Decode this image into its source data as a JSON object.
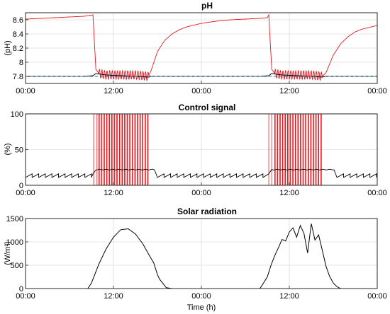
{
  "colors": {
    "red": "#e8151b",
    "black": "#000000",
    "blue": "#1f6fb5",
    "grid": "#dcdcdc",
    "axis": "#262626"
  },
  "chart_data": [
    {
      "type": "line",
      "title": "pH",
      "xlabel": "",
      "ylabel": "(pH)",
      "x_unit": "hours",
      "xlim": [
        0,
        48
      ],
      "ylim": [
        7.7,
        8.7
      ],
      "xticks": [
        0,
        12,
        24,
        36,
        48
      ],
      "xticklabels": [
        "00:00",
        "12:00",
        "00:00",
        "12:00",
        "00:00"
      ],
      "yticks": [
        7.8,
        8.0,
        8.2,
        8.4,
        8.6
      ],
      "yticklabels": [
        "7.8",
        "8",
        "8.2",
        "8.4",
        "8.6"
      ],
      "grid": true,
      "series": [
        {
          "color": "red",
          "style": "solid",
          "x": [
            0,
            2,
            4,
            6,
            8,
            9.2,
            9.6,
            10,
            11,
            13,
            15,
            16.8,
            17.2,
            18,
            19,
            20,
            21,
            22,
            24,
            26,
            28,
            30,
            32,
            33,
            33.2,
            33.6,
            34,
            35,
            37,
            39,
            40.5,
            41,
            42,
            43,
            44,
            45,
            46,
            48
          ],
          "y": [
            8.61,
            8.62,
            8.63,
            8.64,
            8.65,
            8.67,
            7.9,
            7.84,
            7.82,
            7.82,
            7.82,
            7.8,
            7.9,
            8.15,
            8.31,
            8.4,
            8.46,
            8.5,
            8.55,
            8.58,
            8.6,
            8.61,
            8.62,
            8.63,
            8.67,
            7.9,
            7.84,
            7.82,
            7.82,
            7.82,
            7.8,
            7.85,
            8.1,
            8.26,
            8.36,
            8.43,
            8.47,
            8.52
          ],
          "oscillation": {
            "ranges": [
              [
                10,
                16.8
              ],
              [
                34,
                40.5
              ]
            ],
            "period_h": 0.35,
            "amplitude": 0.06
          }
        },
        {
          "color": "black",
          "style": "solid",
          "x": [
            0,
            4,
            8,
            9.2,
            9.6,
            11,
            13,
            15,
            16.8,
            17.2,
            20,
            24,
            28,
            32,
            33.2,
            33.6,
            35,
            37,
            39,
            40.5,
            41,
            44,
            48
          ],
          "y": [
            7.8,
            7.8,
            7.8,
            7.81,
            7.84,
            7.82,
            7.81,
            7.8,
            7.79,
            7.8,
            7.8,
            7.8,
            7.8,
            7.8,
            7.81,
            7.84,
            7.82,
            7.81,
            7.8,
            7.79,
            7.8,
            7.8,
            7.8
          ]
        },
        {
          "color": "blue",
          "style": "dashed",
          "x": [
            0,
            48
          ],
          "y": [
            7.8,
            7.8
          ]
        }
      ]
    },
    {
      "type": "line",
      "title": "Control signal",
      "xlabel": "",
      "ylabel": "(%)",
      "x_unit": "hours",
      "xlim": [
        0,
        48
      ],
      "ylim": [
        0,
        100
      ],
      "xticks": [
        0,
        12,
        24,
        36,
        48
      ],
      "xticklabels": [
        "00:00",
        "12:00",
        "00:00",
        "12:00",
        "00:00"
      ],
      "yticks": [
        0,
        50,
        100
      ],
      "yticklabels": [
        "0",
        "50",
        "100"
      ],
      "grid": true,
      "series": [
        {
          "color": "red",
          "style": "pulses",
          "baseline": 0,
          "high": 100,
          "full_blocks": [
            [
              9.3,
              9.75
            ],
            [
              33.2,
              33.6
            ]
          ],
          "pulse_ranges": [
            [
              10,
              16.8
            ],
            [
              34,
              40.5
            ]
          ],
          "pulse_period_h": 0.35,
          "pulse_width_h": 0.08
        },
        {
          "color": "black",
          "style": "sawtooth",
          "segments": [
            {
              "x": [
                0,
                9.2
              ],
              "low": 11,
              "high": 16
            },
            {
              "x": [
                9.6,
                17.8
              ],
              "level": 22
            },
            {
              "x": [
                18,
                33.2
              ],
              "low": 11,
              "high": 16
            },
            {
              "x": [
                33.6,
                42.3
              ],
              "level": 22
            },
            {
              "x": [
                42.5,
                48
              ],
              "low": 11,
              "high": 16
            }
          ],
          "tooth_period_h": 0.9
        }
      ]
    },
    {
      "type": "line",
      "title": "Solar radiation",
      "xlabel": "Time (h)",
      "ylabel": "(W/m²)",
      "x_unit": "hours",
      "xlim": [
        0,
        48
      ],
      "ylim": [
        0,
        1500
      ],
      "xticks": [
        0,
        12,
        24,
        36,
        48
      ],
      "xticklabels": [
        "00:00",
        "12:00",
        "00:00",
        "12:00",
        "00:00"
      ],
      "yticks": [
        0,
        500,
        1000,
        1500
      ],
      "yticklabels": [
        "0",
        "500",
        "1000",
        "1500"
      ],
      "grid": true,
      "series": [
        {
          "color": "black",
          "style": "solid",
          "x": [
            0,
            8.5,
            9,
            10,
            11,
            12,
            13,
            14,
            15,
            16,
            17,
            17.5,
            18,
            18.3,
            19.2,
            20,
            24,
            32,
            33,
            33.5,
            34,
            34.5,
            35,
            35.5,
            36,
            36.5,
            37,
            37.5,
            38,
            38.5,
            39,
            39.5,
            40,
            40.5,
            41,
            41.5,
            42,
            42.5,
            43,
            43.5,
            48
          ],
          "y": [
            0,
            0,
            120,
            520,
            850,
            1100,
            1260,
            1280,
            1170,
            960,
            680,
            550,
            300,
            200,
            20,
            0,
            0,
            0,
            250,
            500,
            700,
            870,
            1050,
            1020,
            1210,
            1300,
            1100,
            1350,
            1180,
            760,
            1390,
            1040,
            1150,
            820,
            480,
            260,
            120,
            40,
            0,
            0,
            0
          ]
        }
      ]
    }
  ]
}
